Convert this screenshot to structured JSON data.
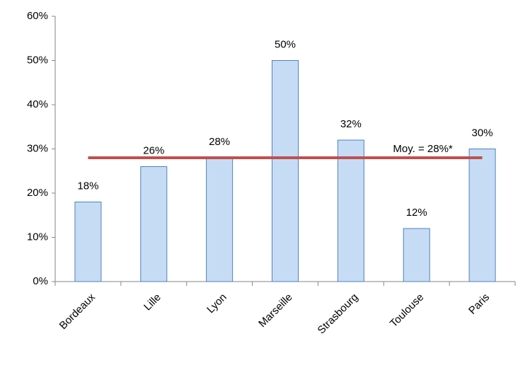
{
  "chart_data": {
    "type": "bar",
    "categories": [
      "Bordeaux",
      "Lille",
      "Lyon",
      "Marseille",
      "Strasbourg",
      "Toulouse",
      "Paris"
    ],
    "values": [
      18,
      26,
      28,
      50,
      32,
      12,
      30
    ],
    "value_labels": [
      "18%",
      "26%",
      "28%",
      "50%",
      "32%",
      "12%",
      "30%"
    ],
    "color": "#c6dcf5",
    "edge_color": "#4f81bd",
    "ylim": [
      0,
      60
    ],
    "yticks": [
      {
        "value": 0,
        "label": "0%"
      },
      {
        "value": 10,
        "label": "10%"
      },
      {
        "value": 20,
        "label": "20%"
      },
      {
        "value": 30,
        "label": "30%"
      },
      {
        "value": 40,
        "label": "40%"
      },
      {
        "value": 50,
        "label": "50%"
      },
      {
        "value": 60,
        "label": "60%"
      }
    ],
    "reference_line": {
      "value": 28,
      "label": "Moy. = 28%*",
      "color": "#c0504d"
    },
    "grid": false
  }
}
